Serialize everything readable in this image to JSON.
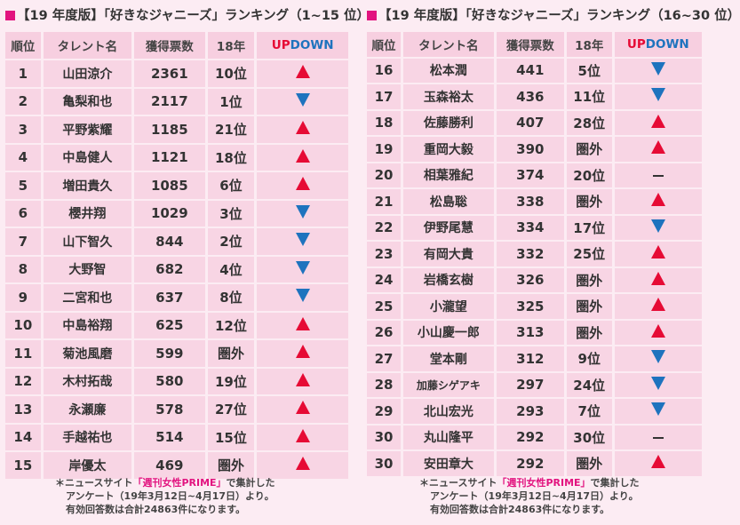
{
  "colors": {
    "accent": "#e2137f",
    "up": "#e60b35",
    "down": "#1e73be",
    "cell": "#f8d5e4"
  },
  "headers": {
    "rank": "順位",
    "name": "タレント名",
    "votes": "獲得票数",
    "prev": "18年",
    "up": "UP",
    "down": "DOWN"
  },
  "note": {
    "prefix": "＊ニュースサイト",
    "source": "「週刊女性PRIME」",
    "suffix": "で集計した",
    "line2": "アンケート（19年3月12日~4月17日）より。",
    "line3": "有効回答数は合計24863件になります。"
  },
  "tables": [
    {
      "title": "【19 年度版】「好きなジャニーズ」ランキング（1~15 位）",
      "rows": [
        [
          "1",
          "山田涼介",
          "2361",
          "10位",
          "up"
        ],
        [
          "2",
          "亀梨和也",
          "2117",
          "1位",
          "down"
        ],
        [
          "3",
          "平野紫耀",
          "1185",
          "21位",
          "up"
        ],
        [
          "4",
          "中島健人",
          "1121",
          "18位",
          "up"
        ],
        [
          "5",
          "増田貴久",
          "1085",
          "6位",
          "up"
        ],
        [
          "6",
          "櫻井翔",
          "1029",
          "3位",
          "down"
        ],
        [
          "7",
          "山下智久",
          "844",
          "2位",
          "down"
        ],
        [
          "8",
          "大野智",
          "682",
          "4位",
          "down"
        ],
        [
          "9",
          "二宮和也",
          "637",
          "8位",
          "down"
        ],
        [
          "10",
          "中島裕翔",
          "625",
          "12位",
          "up"
        ],
        [
          "11",
          "菊池風磨",
          "599",
          "圏外",
          "up"
        ],
        [
          "12",
          "木村拓哉",
          "580",
          "19位",
          "up"
        ],
        [
          "13",
          "永瀬廉",
          "578",
          "27位",
          "up"
        ],
        [
          "14",
          "手越祐也",
          "514",
          "15位",
          "up"
        ],
        [
          "15",
          "岸優太",
          "469",
          "圏外",
          "up"
        ]
      ]
    },
    {
      "title": "【19 年度版】「好きなジャニーズ」ランキング（16~30 位）",
      "rows": [
        [
          "16",
          "松本潤",
          "441",
          "5位",
          "down"
        ],
        [
          "17",
          "玉森裕太",
          "436",
          "11位",
          "down"
        ],
        [
          "18",
          "佐藤勝利",
          "407",
          "28位",
          "up"
        ],
        [
          "19",
          "重岡大毅",
          "390",
          "圏外",
          "up"
        ],
        [
          "20",
          "相葉雅紀",
          "374",
          "20位",
          "same"
        ],
        [
          "21",
          "松島聡",
          "338",
          "圏外",
          "up"
        ],
        [
          "22",
          "伊野尾慧",
          "334",
          "17位",
          "down"
        ],
        [
          "23",
          "有岡大貴",
          "332",
          "25位",
          "up"
        ],
        [
          "24",
          "岩橋玄樹",
          "326",
          "圏外",
          "up"
        ],
        [
          "25",
          "小瀧望",
          "325",
          "圏外",
          "up"
        ],
        [
          "26",
          "小山慶一郎",
          "313",
          "圏外",
          "up"
        ],
        [
          "27",
          "堂本剛",
          "312",
          "9位",
          "down"
        ],
        [
          "28",
          "加藤シゲアキ",
          "297",
          "24位",
          "down"
        ],
        [
          "29",
          "北山宏光",
          "293",
          "7位",
          "down"
        ],
        [
          "30",
          "丸山隆平",
          "292",
          "30位",
          "same"
        ],
        [
          "30",
          "安田章大",
          "292",
          "圏外",
          "up"
        ]
      ]
    }
  ]
}
